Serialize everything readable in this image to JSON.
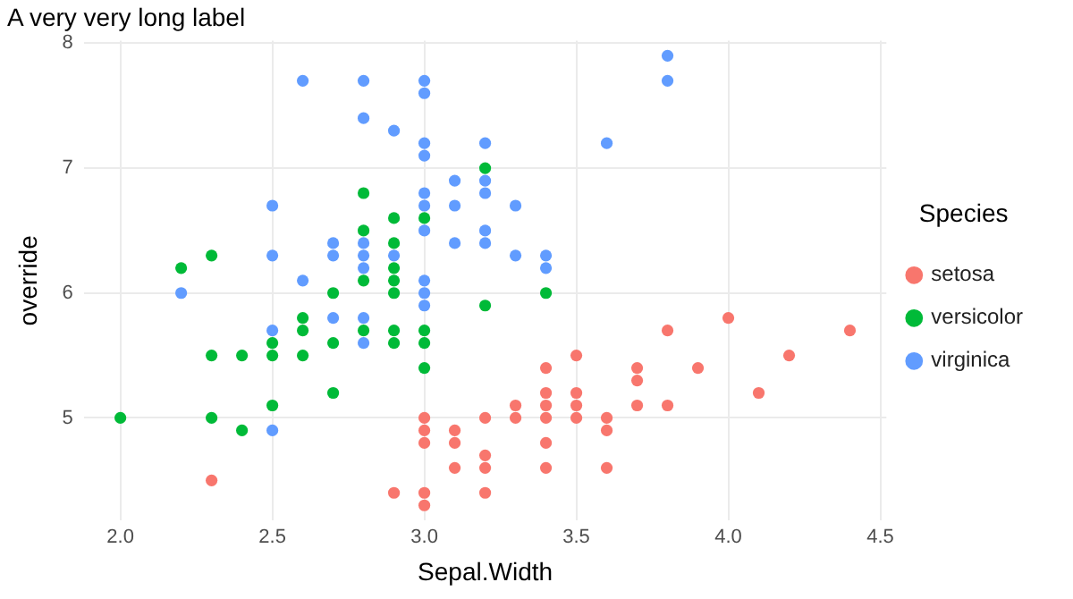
{
  "chart_data": {
    "type": "scatter",
    "title": "A very very long label",
    "xlabel": "Sepal.Width",
    "ylabel": "override",
    "legend_title": "Species",
    "legend": "right",
    "grid": true,
    "marker": "circle",
    "xlim": [
      1.88,
      4.52
    ],
    "xticks": [
      {
        "value": 2,
        "label": "2.0"
      },
      2.5,
      {
        "value": 3,
        "label": "3.0"
      },
      3.5,
      {
        "value": 4,
        "label": "4.0"
      },
      4.5
    ],
    "ylim": [
      4.18,
      8.02
    ],
    "yticks": [
      5,
      6,
      7,
      8
    ],
    "series": [
      {
        "name": "setosa",
        "color": "#f8766d",
        "x": [
          3.5,
          3.0,
          3.2,
          3.1,
          3.6,
          3.9,
          3.4,
          3.4,
          2.9,
          3.1,
          3.7,
          3.4,
          3.0,
          3.0,
          4.0,
          4.4,
          3.8,
          3.8,
          3.4,
          3.7,
          3.6,
          3.3,
          3.0,
          3.5,
          3.4,
          3.1,
          4.1,
          4.2,
          3.2,
          3.5,
          3.6,
          3.0,
          3.4,
          3.5,
          2.3,
          3.2,
          3.2,
          3.7,
          3.3
        ],
        "values": [
          5.1,
          4.9,
          4.7,
          4.6,
          5.0,
          5.4,
          4.6,
          5.0,
          4.4,
          4.9,
          5.4,
          4.8,
          4.8,
          4.3,
          5.8,
          5.7,
          5.7,
          5.1,
          5.4,
          5.1,
          4.6,
          5.1,
          5.0,
          5.2,
          5.2,
          4.8,
          5.2,
          5.5,
          5.0,
          5.5,
          4.9,
          4.4,
          5.1,
          5.0,
          4.5,
          4.4,
          4.6,
          5.3,
          5.0
        ]
      },
      {
        "name": "versicolor",
        "color": "#00ba38",
        "x": [
          3.2,
          2.3,
          2.8,
          2.8,
          2.4,
          2.9,
          2.7,
          2.0,
          2.9,
          2.9,
          3.0,
          2.2,
          2.5,
          3.2,
          2.8,
          2.9,
          3.0,
          2.8,
          2.9,
          2.6,
          2.4,
          2.7,
          3.0,
          3.4,
          2.3,
          2.5,
          2.6,
          2.6,
          2.3,
          2.7,
          3.0,
          2.9,
          2.9,
          2.5
        ],
        "values": [
          7.0,
          5.5,
          6.5,
          5.7,
          4.9,
          6.6,
          5.2,
          5.0,
          6.1,
          5.6,
          5.6,
          6.2,
          5.6,
          5.9,
          6.1,
          6.4,
          6.6,
          6.8,
          6.0,
          5.7,
          5.5,
          6.0,
          5.4,
          6.0,
          6.3,
          5.5,
          5.5,
          5.8,
          5.0,
          5.6,
          5.7,
          5.7,
          6.2,
          5.1
        ]
      },
      {
        "name": "virginica",
        "color": "#619cff",
        "x": [
          3.3,
          2.7,
          3.0,
          2.9,
          3.0,
          3.0,
          2.5,
          2.9,
          2.5,
          3.6,
          3.2,
          2.7,
          3.0,
          2.5,
          2.8,
          3.2,
          3.8,
          2.6,
          2.2,
          3.2,
          2.8,
          2.8,
          2.7,
          3.3,
          3.2,
          2.8,
          3.0,
          2.8,
          3.0,
          2.8,
          3.8,
          2.8,
          2.6,
          3.0,
          3.4,
          3.1,
          3.0,
          3.1,
          3.1,
          3.2,
          3.0,
          2.5,
          3.4,
          3.0
        ],
        "values": [
          6.3,
          5.8,
          7.1,
          6.3,
          6.5,
          7.6,
          4.9,
          7.3,
          6.7,
          7.2,
          6.5,
          6.4,
          6.8,
          5.7,
          5.8,
          6.4,
          7.7,
          7.7,
          6.0,
          6.9,
          5.6,
          7.7,
          6.3,
          6.7,
          7.2,
          6.2,
          6.1,
          6.4,
          7.2,
          7.4,
          7.9,
          6.3,
          6.1,
          7.7,
          6.3,
          6.4,
          6.0,
          6.9,
          6.7,
          6.8,
          6.7,
          6.3,
          6.2,
          5.9
        ]
      }
    ]
  }
}
